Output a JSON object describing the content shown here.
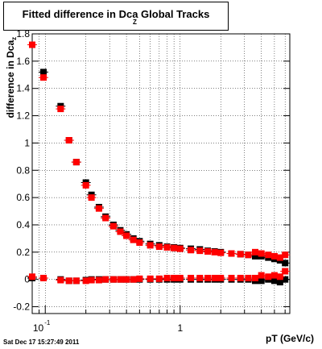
{
  "chart_data": {
    "type": "scatter",
    "title": "Fitted difference in Dca",
    "title_subscript": "Z",
    "title_suffix": "Global Tracks",
    "xlabel": "pT (GeV/c)",
    "ylabel": "difference in Dca",
    "ylabel_subscript": "z",
    "xscale": "log",
    "xlim": [
      0.08,
      6.5
    ],
    "ylim": [
      -0.25,
      1.8
    ],
    "grid": true,
    "yticks": [
      -0.2,
      0,
      0.2,
      0.4,
      0.6,
      0.8,
      1,
      1.2,
      1.4,
      1.6,
      1.8
    ],
    "ytick_labels": [
      "-0.2",
      "0",
      "0.2",
      "0.4",
      "0.6",
      "0.8",
      "1",
      "1.2",
      "1.4",
      "1.6",
      "1.8"
    ],
    "xtick_labels": [
      "10",
      "-1",
      "1"
    ],
    "colors": {
      "series_black": "#000000",
      "series_red": "#ff0000"
    },
    "series": [
      {
        "x": [
          0.097,
          0.13,
          0.15,
          0.17,
          0.2,
          0.22,
          0.25,
          0.28,
          0.32,
          0.36,
          0.4,
          0.45,
          0.5,
          0.6,
          0.7,
          0.8,
          0.9,
          1.0,
          1.2,
          1.4,
          1.6,
          1.8,
          2.0,
          2.4,
          2.8,
          3.2,
          3.6,
          4.0,
          4.5,
          5.0,
          5.5,
          6.0
        ],
        "values": [
          1.52,
          1.27,
          1.02,
          0.86,
          0.71,
          0.62,
          0.53,
          0.46,
          0.4,
          0.36,
          0.33,
          0.3,
          0.28,
          0.26,
          0.25,
          0.24,
          0.235,
          0.23,
          0.225,
          0.22,
          0.21,
          0.205,
          0.2,
          0.19,
          0.185,
          0.18,
          0.17,
          0.17,
          0.16,
          0.15,
          0.14,
          0.12
        ]
      },
      {
        "x": [
          0.08,
          0.097,
          0.13,
          0.15,
          0.17,
          0.2,
          0.22,
          0.25,
          0.28,
          0.32,
          0.36,
          0.4,
          0.45,
          0.5,
          0.6,
          0.7,
          0.8,
          0.9,
          1.0,
          1.2,
          1.4,
          1.6,
          1.8,
          2.0,
          2.4,
          2.8,
          3.2,
          3.6,
          4.0,
          4.5,
          5.0,
          5.5,
          6.0
        ],
        "values": [
          1.72,
          1.48,
          1.25,
          1.02,
          0.86,
          0.69,
          0.6,
          0.52,
          0.45,
          0.39,
          0.35,
          0.32,
          0.29,
          0.27,
          0.25,
          0.24,
          0.235,
          0.23,
          0.225,
          0.215,
          0.21,
          0.205,
          0.2,
          0.195,
          0.19,
          0.185,
          0.18,
          0.2,
          0.19,
          0.18,
          0.17,
          0.16,
          0.18
        ]
      },
      {
        "x": [
          0.08,
          0.097,
          0.13,
          0.15,
          0.17,
          0.2,
          0.22,
          0.25,
          0.28,
          0.32,
          0.36,
          0.4,
          0.45,
          0.5,
          0.6,
          0.7,
          0.8,
          0.9,
          1.0,
          1.2,
          1.4,
          1.6,
          1.8,
          2.0,
          2.4,
          2.8,
          3.2,
          3.6,
          4.0,
          4.5,
          5.0,
          5.5,
          6.0
        ],
        "values": [
          0.01,
          0.01,
          0.0,
          -0.01,
          -0.01,
          -0.005,
          0.0,
          0.0,
          0.0,
          0.0,
          0.0,
          0.0,
          0.0,
          0.0,
          0.0,
          0.0,
          0.0,
          0.0,
          0.0,
          0.0,
          0.0,
          0.0,
          0.0,
          0.0,
          0.0,
          0.0,
          0.0,
          -0.01,
          -0.01,
          0.0,
          -0.01,
          -0.02,
          0.0
        ]
      },
      {
        "x": [
          0.08,
          0.097,
          0.13,
          0.15,
          0.17,
          0.2,
          0.22,
          0.25,
          0.28,
          0.32,
          0.36,
          0.4,
          0.45,
          0.5,
          0.6,
          0.7,
          0.8,
          0.9,
          1.0,
          1.2,
          1.4,
          1.6,
          1.8,
          2.0,
          2.4,
          2.8,
          3.2,
          3.6,
          4.0,
          4.5,
          5.0,
          5.5,
          6.0
        ],
        "values": [
          0.02,
          0.01,
          -0.005,
          -0.01,
          -0.01,
          -0.01,
          -0.005,
          -0.005,
          0.0,
          0.0,
          0.0,
          0.0,
          0.0,
          0.005,
          0.005,
          0.005,
          0.01,
          0.01,
          0.01,
          0.01,
          0.01,
          0.01,
          0.01,
          0.01,
          0.01,
          0.01,
          0.01,
          0.01,
          0.03,
          0.02,
          0.03,
          0.02,
          0.06
        ]
      }
    ]
  },
  "footer": "Sat Dec 17 15:27:49 2011"
}
